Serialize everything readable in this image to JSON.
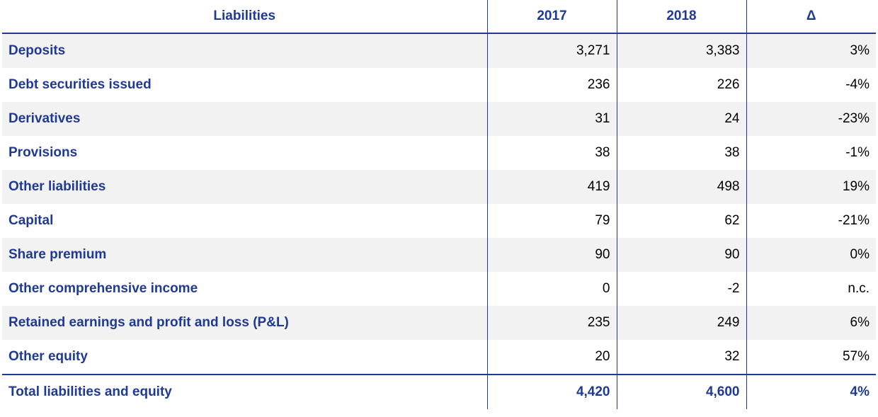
{
  "header": {
    "label": "Liabilities",
    "col_2017": "2017",
    "col_2018": "2018",
    "col_delta": "Δ"
  },
  "rows": [
    {
      "label": "Deposits",
      "v2017": "3,271",
      "v2018": "3,383",
      "delta": "3%"
    },
    {
      "label": "Debt securities issued",
      "v2017": "236",
      "v2018": "226",
      "delta": "-4%"
    },
    {
      "label": "Derivatives",
      "v2017": "31",
      "v2018": "24",
      "delta": "-23%"
    },
    {
      "label": "Provisions",
      "v2017": "38",
      "v2018": "38",
      "delta": "-1%"
    },
    {
      "label": "Other liabilities",
      "v2017": "419",
      "v2018": "498",
      "delta": "19%"
    },
    {
      "label": "Capital",
      "v2017": "79",
      "v2018": "62",
      "delta": "-21%"
    },
    {
      "label": "Share premium",
      "v2017": "90",
      "v2018": "90",
      "delta": "0%"
    },
    {
      "label": "Other comprehensive income",
      "v2017": "0",
      "v2018": "-2",
      "delta": "n.c."
    },
    {
      "label": "Retained earnings and profit and loss (P&L)",
      "v2017": "235",
      "v2018": "249",
      "delta": "6%"
    },
    {
      "label": "Other equity",
      "v2017": "20",
      "v2018": "32",
      "delta": "57%"
    }
  ],
  "total": {
    "label": "Total liabilities and equity",
    "v2017": "4,420",
    "v2018": "4,600",
    "delta": "4%"
  },
  "colors": {
    "accent": "#1f3a93",
    "shade": "#f2f2f2"
  }
}
